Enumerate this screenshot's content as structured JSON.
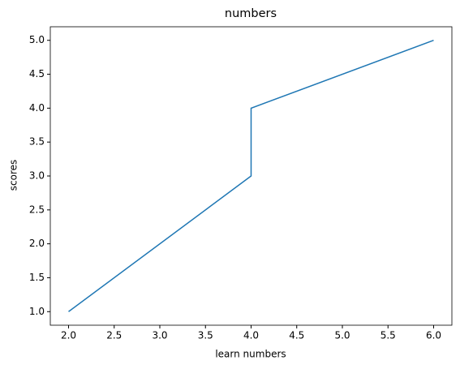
{
  "chart_data": {
    "type": "line",
    "title": "numbers",
    "x_label": "learn numbers",
    "y_label": "scores",
    "x": [
      2,
      4,
      4,
      6
    ],
    "series": [
      {
        "values": [
          1,
          3,
          4,
          5
        ],
        "color": "#1f77b4"
      }
    ],
    "xlim": [
      1.8,
      6.2
    ],
    "xticks": [
      {
        "value": 2,
        "label": "2.0"
      },
      2.5,
      {
        "value": 3,
        "label": "3.0"
      },
      3.5,
      {
        "value": 4,
        "label": "4.0"
      },
      4.5,
      {
        "value": 5,
        "label": "5.0"
      },
      5.5,
      {
        "value": 6,
        "label": "6.0"
      }
    ],
    "ylim": [
      0.8,
      5.2
    ],
    "yticks": [
      {
        "value": 1,
        "label": "1.0"
      },
      1.5,
      {
        "value": 2,
        "label": "2.0"
      },
      2.5,
      {
        "value": 3,
        "label": "3.0"
      },
      3.5,
      {
        "value": 4,
        "label": "4.0"
      },
      4.5,
      {
        "value": 5,
        "label": "5.0"
      }
    ],
    "grid": false
  }
}
